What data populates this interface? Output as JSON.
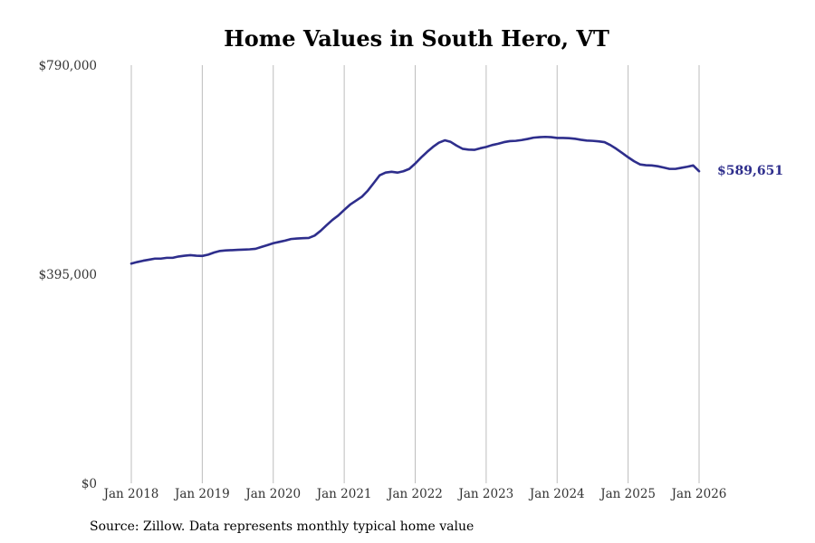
{
  "chart_data": {
    "type": "line",
    "title": "Home Values in South Hero, VT",
    "source": "Source: Zillow. Data represents monthly typical home value",
    "ylim": [
      0,
      790000
    ],
    "y_ticks": [
      {
        "value": 0,
        "label": "$0"
      },
      {
        "value": 395000,
        "label": "$395,000"
      },
      {
        "value": 790000,
        "label": "$790,000"
      }
    ],
    "x_ticks": [
      {
        "value": 2018,
        "label": "Jan 2018"
      },
      {
        "value": 2019,
        "label": "Jan 2019"
      },
      {
        "value": 2020,
        "label": "Jan 2020"
      },
      {
        "value": 2021,
        "label": "Jan 2021"
      },
      {
        "value": 2022,
        "label": "Jan 2022"
      },
      {
        "value": 2023,
        "label": "Jan 2023"
      },
      {
        "value": 2024,
        "label": "Jan 2024"
      },
      {
        "value": 2025,
        "label": "Jan 2025"
      },
      {
        "value": 2026,
        "label": "Jan 2026"
      }
    ],
    "xlim": [
      2018,
      2026.083
    ],
    "grid": "vertical",
    "line_color": "#2e2e8c",
    "end_label": "$589,651",
    "series": [
      {
        "name": "Typical home value",
        "points": [
          [
            2018.0,
            415000
          ],
          [
            2018.083,
            418000
          ],
          [
            2018.167,
            420500
          ],
          [
            2018.25,
            422500
          ],
          [
            2018.333,
            424500
          ],
          [
            2018.417,
            424500
          ],
          [
            2018.5,
            426000
          ],
          [
            2018.583,
            426000
          ],
          [
            2018.667,
            428500
          ],
          [
            2018.75,
            430000
          ],
          [
            2018.833,
            431000
          ],
          [
            2018.917,
            430000
          ],
          [
            2019.0,
            429500
          ],
          [
            2019.083,
            432000
          ],
          [
            2019.167,
            436000
          ],
          [
            2019.25,
            439000
          ],
          [
            2019.333,
            440000
          ],
          [
            2019.417,
            440500
          ],
          [
            2019.5,
            441000
          ],
          [
            2019.583,
            441500
          ],
          [
            2019.667,
            442000
          ],
          [
            2019.75,
            443000
          ],
          [
            2019.833,
            446500
          ],
          [
            2019.917,
            450000
          ],
          [
            2020.0,
            453500
          ],
          [
            2020.083,
            456000
          ],
          [
            2020.167,
            458500
          ],
          [
            2020.25,
            461500
          ],
          [
            2020.333,
            462500
          ],
          [
            2020.417,
            463000
          ],
          [
            2020.5,
            463500
          ],
          [
            2020.583,
            468000
          ],
          [
            2020.667,
            477000
          ],
          [
            2020.75,
            487500
          ],
          [
            2020.833,
            497500
          ],
          [
            2020.917,
            506000
          ],
          [
            2021.0,
            516500
          ],
          [
            2021.083,
            526500
          ],
          [
            2021.167,
            534000
          ],
          [
            2021.25,
            541500
          ],
          [
            2021.333,
            553000
          ],
          [
            2021.417,
            567500
          ],
          [
            2021.5,
            582000
          ],
          [
            2021.583,
            587000
          ],
          [
            2021.667,
            588500
          ],
          [
            2021.75,
            587000
          ],
          [
            2021.833,
            589500
          ],
          [
            2021.917,
            594000
          ],
          [
            2022.0,
            604000
          ],
          [
            2022.083,
            615500
          ],
          [
            2022.167,
            626000
          ],
          [
            2022.25,
            635500
          ],
          [
            2022.333,
            643500
          ],
          [
            2022.417,
            648000
          ],
          [
            2022.5,
            645000
          ],
          [
            2022.583,
            638000
          ],
          [
            2022.667,
            632000
          ],
          [
            2022.75,
            630500
          ],
          [
            2022.833,
            630000
          ],
          [
            2022.917,
            633000
          ],
          [
            2023.0,
            635500
          ],
          [
            2023.083,
            639000
          ],
          [
            2023.167,
            641500
          ],
          [
            2023.25,
            644500
          ],
          [
            2023.333,
            646500
          ],
          [
            2023.417,
            647000
          ],
          [
            2023.5,
            648500
          ],
          [
            2023.583,
            650500
          ],
          [
            2023.667,
            653000
          ],
          [
            2023.75,
            654000
          ],
          [
            2023.833,
            654500
          ],
          [
            2023.917,
            654000
          ],
          [
            2024.0,
            652500
          ],
          [
            2024.083,
            652500
          ],
          [
            2024.167,
            652000
          ],
          [
            2024.25,
            651000
          ],
          [
            2024.333,
            649000
          ],
          [
            2024.417,
            647500
          ],
          [
            2024.5,
            647000
          ],
          [
            2024.583,
            646000
          ],
          [
            2024.667,
            644500
          ],
          [
            2024.75,
            639000
          ],
          [
            2024.833,
            632000
          ],
          [
            2024.917,
            624000
          ],
          [
            2025.0,
            616000
          ],
          [
            2025.083,
            608500
          ],
          [
            2025.167,
            602500
          ],
          [
            2025.25,
            601000
          ],
          [
            2025.333,
            600500
          ],
          [
            2025.417,
            599000
          ],
          [
            2025.5,
            596500
          ],
          [
            2025.583,
            594000
          ],
          [
            2025.667,
            594000
          ],
          [
            2025.75,
            596000
          ],
          [
            2025.833,
            598000
          ],
          [
            2025.917,
            600500
          ],
          [
            2026.0,
            589651
          ]
        ]
      }
    ]
  }
}
